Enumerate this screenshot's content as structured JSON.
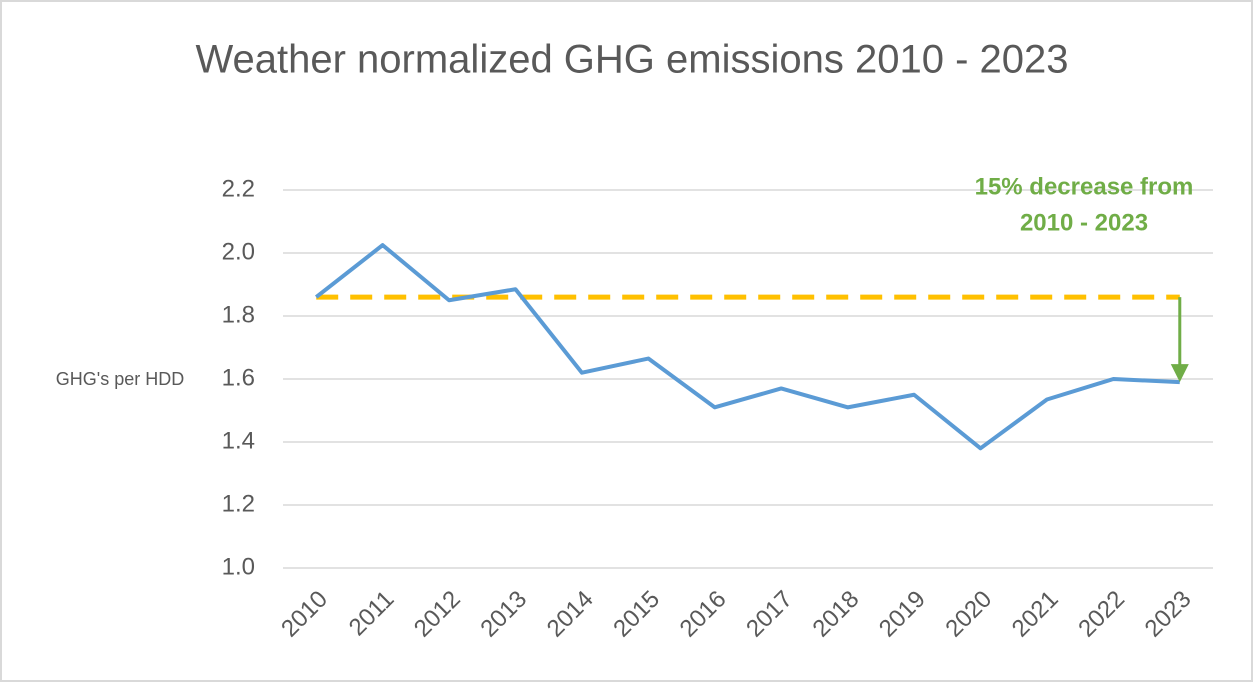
{
  "chart_data": {
    "type": "line",
    "title": "Weather normalized GHG emissions 2010 - 2023",
    "y_axis_label": "GHG's per HDD",
    "categories": [
      "2010",
      "2011",
      "2012",
      "2013",
      "2014",
      "2015",
      "2016",
      "2017",
      "2018",
      "2019",
      "2020",
      "2021",
      "2022",
      "2023"
    ],
    "series": [
      {
        "name": "GHG's per HDD",
        "color": "#5b9bd5",
        "values": [
          1.86,
          2.025,
          1.85,
          1.885,
          1.62,
          1.665,
          1.51,
          1.57,
          1.51,
          1.55,
          1.38,
          1.535,
          1.6,
          1.59
        ]
      }
    ],
    "reference": {
      "value": 1.86,
      "color": "#ffc000"
    },
    "annotation": {
      "lines": [
        "15% decrease from",
        "2010 - 2023"
      ],
      "color": "#70ad47"
    },
    "ylim": [
      1.0,
      2.2
    ],
    "yticks": [
      {
        "value": 1,
        "label": "1.0"
      },
      1.2,
      1.4,
      1.6,
      1.8,
      {
        "value": 2,
        "label": "2.0"
      },
      2.2
    ],
    "grid": true
  }
}
